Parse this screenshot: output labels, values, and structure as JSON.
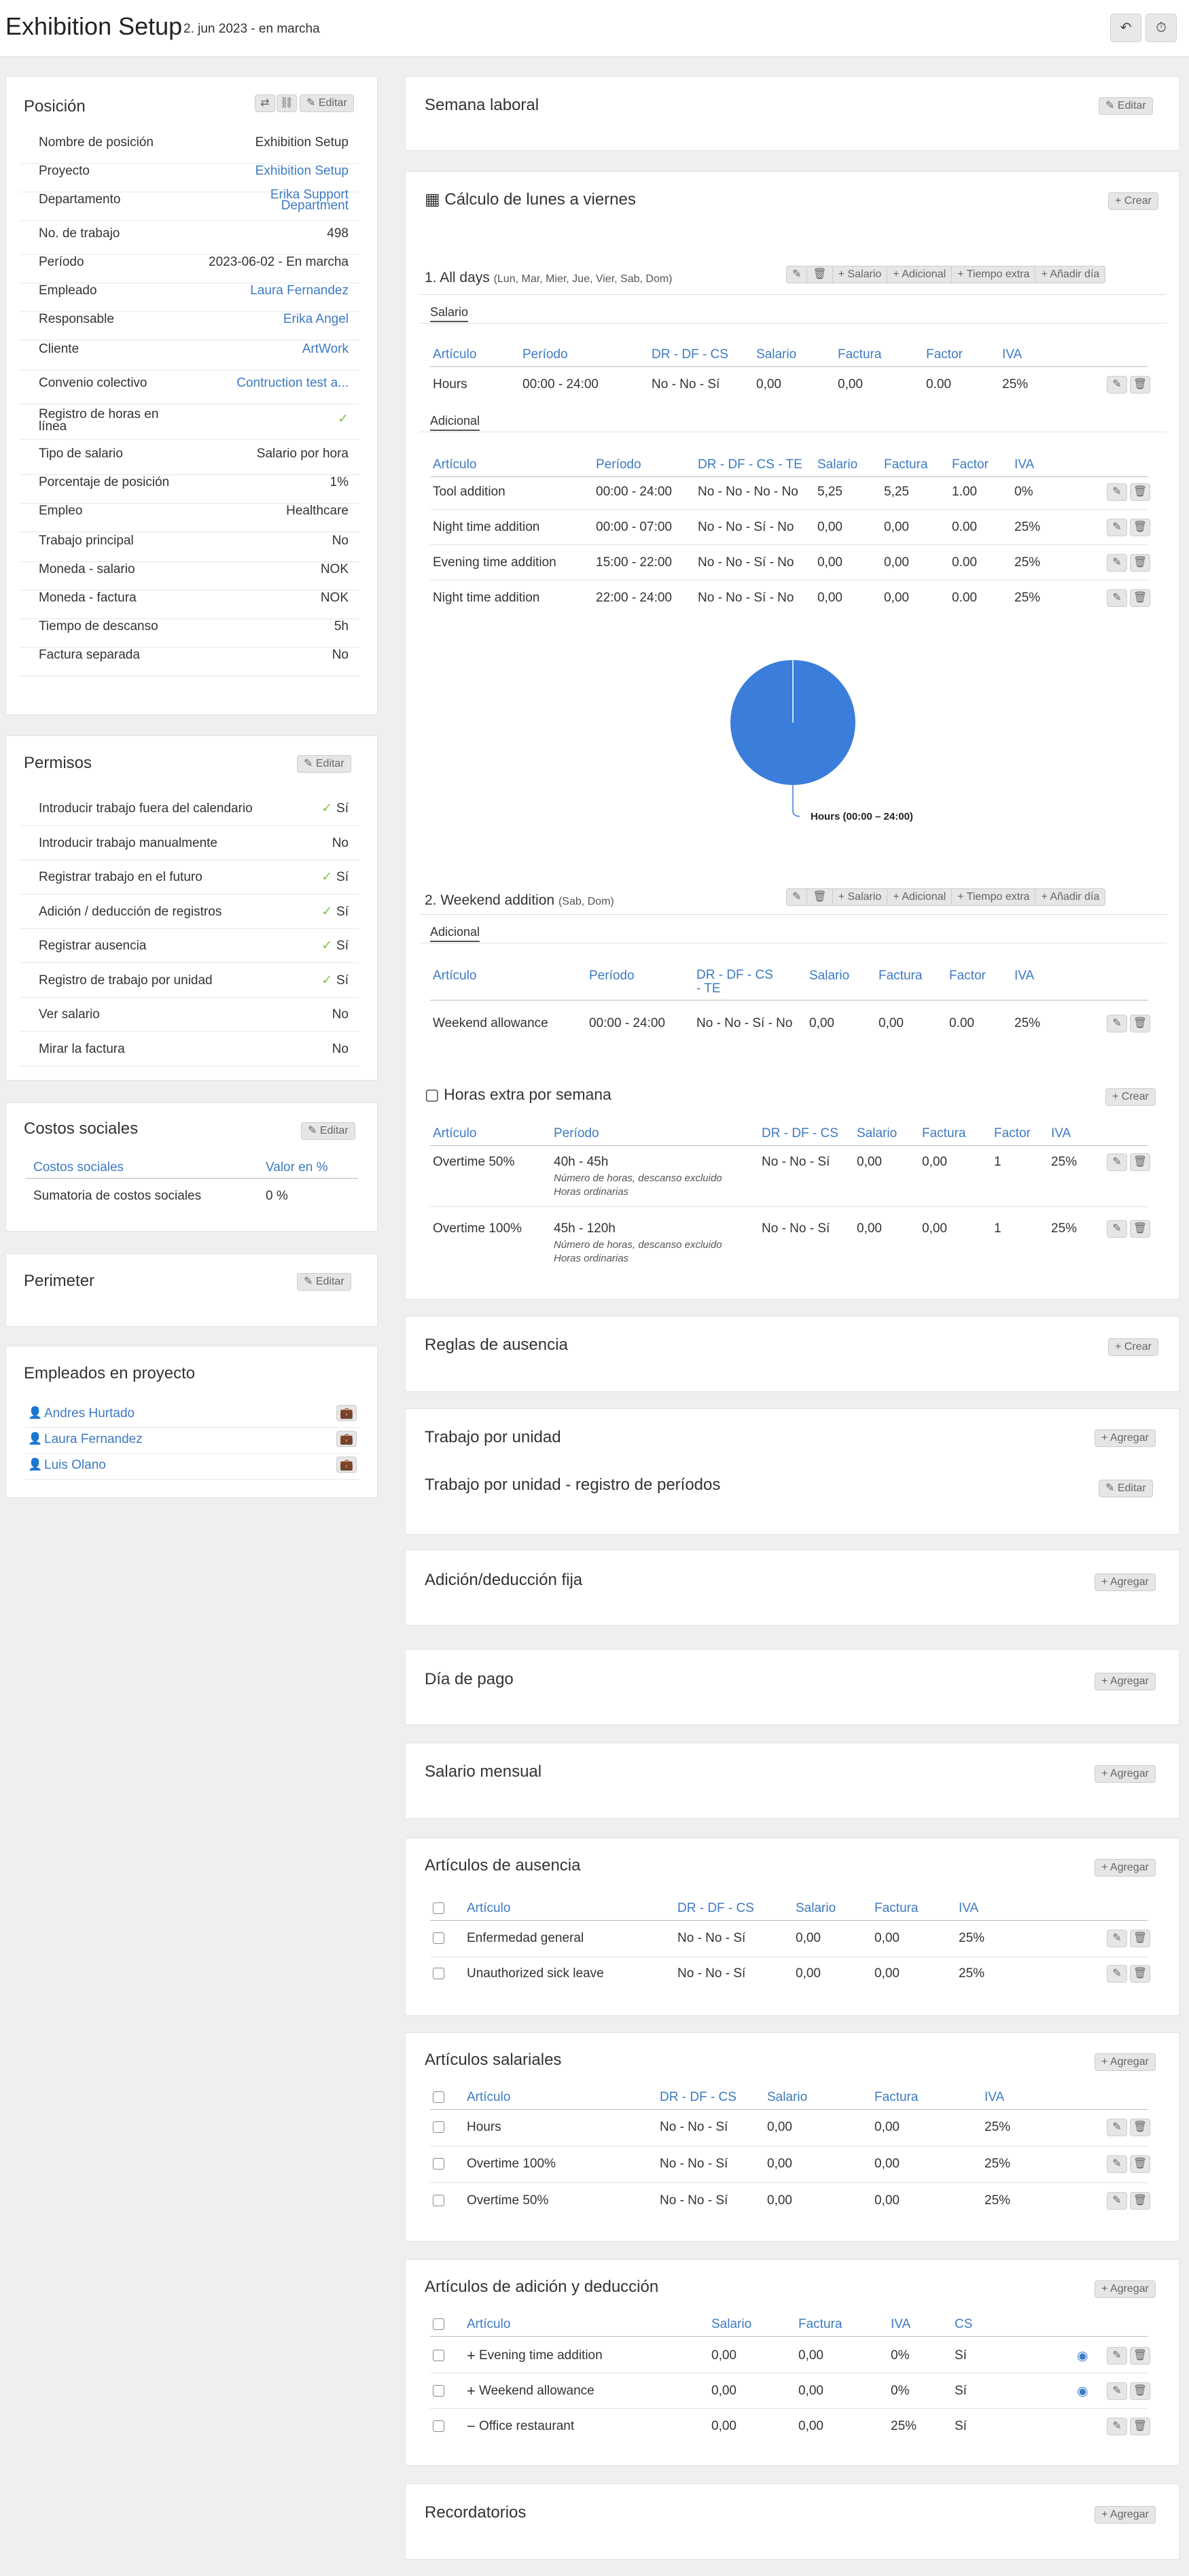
{
  "header": {
    "title": "Exhibition Setup",
    "subtitle": "2. jun 2023 - en marcha",
    "back_icon": "↶",
    "history_icon": "⏱"
  },
  "common": {
    "edit": "Editar",
    "create": "+ Crear",
    "add": "+ Agregar"
  },
  "posicion": {
    "title": "Posición",
    "rows": [
      {
        "label": "Nombre de posición",
        "value": "Exhibition Setup"
      },
      {
        "label": "Proyecto",
        "value": "Exhibition Setup"
      },
      {
        "label": "Departamento",
        "value": "Erika Support Department"
      },
      {
        "label": "No. de trabajo",
        "value": "498"
      },
      {
        "label": "Período",
        "value": "2023-06-02 - En marcha"
      },
      {
        "label": "Empleado",
        "value": "Laura Fernandez"
      },
      {
        "label": "Responsable",
        "value": "Erika Angel"
      },
      {
        "label": "Cliente",
        "value": "ArtWork"
      },
      {
        "label": "Convenio colectivo",
        "value": "Contruction test a..."
      },
      {
        "label": "Registro de horas en línea",
        "value": "✓"
      },
      {
        "label": "Tipo de salario",
        "value": "Salario por hora"
      },
      {
        "label": "Porcentaje de posición",
        "value": "1%"
      },
      {
        "label": "Empleo",
        "value": "Healthcare"
      },
      {
        "label": "Trabajo principal",
        "value": "No"
      },
      {
        "label": "Moneda - salario",
        "value": "NOK"
      },
      {
        "label": "Moneda - factura",
        "value": "NOK"
      },
      {
        "label": "Tiempo de descanso",
        "value": "5h"
      },
      {
        "label": "Factura separada",
        "value": "No"
      }
    ]
  },
  "permisos": {
    "title": "Permisos",
    "rows": [
      {
        "label": "Introducir trabajo fuera del calendario",
        "value": "Sí"
      },
      {
        "label": "Introducir trabajo manualmente",
        "value": "No"
      },
      {
        "label": "Registrar trabajo en el futuro",
        "value": "Sí"
      },
      {
        "label": "Adición / deducción de registros",
        "value": "Sí"
      },
      {
        "label": "Registrar ausencia",
        "value": "Sí"
      },
      {
        "label": "Registro de trabajo por unidad",
        "value": "Sí"
      },
      {
        "label": "Ver salario",
        "value": "No"
      },
      {
        "label": "Mirar la factura",
        "value": "No"
      }
    ]
  },
  "costos": {
    "title": "Costos sociales",
    "col1": "Costos sociales",
    "col2": "Valor en %",
    "row_label": "Sumatoria de costos sociales",
    "row_value": "0 %"
  },
  "perimeter": {
    "title": "Perimeter"
  },
  "empleados": {
    "title": "Empleados en proyecto",
    "items": [
      "Andres Hurtado",
      "Laura Fernandez",
      "Luis Olano"
    ]
  },
  "semana": {
    "title": "Semana laboral"
  },
  "calculo": {
    "title": "Cálculo de lunes a viernes"
  },
  "day1": {
    "title": "1. All days",
    "days": "(Lun, Mar, Mier, Jue, Vier, Sab, Dom)",
    "actions": [
      "+ Salario",
      "+ Adicional",
      "+ Tiempo extra",
      "+ Añadir día"
    ],
    "tab_salario": "Salario",
    "tab_adicional": "Adicional",
    "sal_headers": [
      "Artículo",
      "Período",
      "DR - DF - CS",
      "Salario",
      "Factura",
      "Factor",
      "IVA"
    ],
    "sal_row": [
      "Hours",
      "00:00 - 24:00",
      "No - No - Sí",
      "0,00",
      "0,00",
      "0.00",
      "25%"
    ],
    "add_headers": [
      "Artículo",
      "Período",
      "DR - DF - CS - TE",
      "Salario",
      "Factura",
      "Factor",
      "IVA"
    ],
    "add_rows": [
      [
        "Tool addition",
        "00:00 - 24:00",
        "No - No - No - No",
        "5,25",
        "5,25",
        "1.00",
        "0%"
      ],
      [
        "Night time addition",
        "00:00 - 07:00",
        "No - No - Sí - No",
        "0,00",
        "0,00",
        "0.00",
        "25%"
      ],
      [
        "Evening time addition",
        "15:00 - 22:00",
        "No - No - Sí - No",
        "0,00",
        "0,00",
        "0.00",
        "25%"
      ],
      [
        "Night time addition",
        "22:00 - 24:00",
        "No - No - Sí - No",
        "0,00",
        "0,00",
        "0.00",
        "25%"
      ]
    ]
  },
  "chart_data": {
    "type": "pie",
    "labels": [
      "Hours (00:00 – 24:00)"
    ],
    "values": [
      100
    ],
    "colors": [
      "#3a7ddb"
    ]
  },
  "day2": {
    "title": "2. Weekend addition",
    "days": "(Sab, Dom)",
    "tab_adicional": "Adicional",
    "headers": [
      "Artículo",
      "Período",
      "DR - DF - CS - TE",
      "Salario",
      "Factura",
      "Factor",
      "IVA"
    ],
    "row": [
      "Weekend allowance",
      "00:00 - 24:00",
      "No - No - Sí - No",
      "0,00",
      "0,00",
      "0.00",
      "25%"
    ]
  },
  "horas": {
    "title": "Horas extra por semana",
    "headers": [
      "Artículo",
      "Período",
      "DR - DF - CS",
      "Salario",
      "Factura",
      "Factor",
      "IVA"
    ],
    "rows": [
      {
        "cells": [
          "Overtime 50%",
          "40h - 45h",
          "No - No - Sí",
          "0,00",
          "0,00",
          "1",
          "25%"
        ],
        "note1": "Número de horas, descanso excluido",
        "note2": "Horas ordinarias"
      },
      {
        "cells": [
          "Overtime 100%",
          "45h - 120h",
          "No - No - Sí",
          "0,00",
          "0,00",
          "1",
          "25%"
        ],
        "note1": "Número de horas, descanso excluido",
        "note2": "Horas ordinarias"
      }
    ]
  },
  "reglas": {
    "title": "Reglas de ausencia"
  },
  "unidad": {
    "title": "Trabajo por unidad",
    "sub": "Trabajo por unidad - registro de períodos"
  },
  "adicion_fija": {
    "title": "Adición/deducción fija"
  },
  "dia_pago": {
    "title": "Día de pago"
  },
  "salario_mensual": {
    "title": "Salario mensual"
  },
  "ausencia": {
    "title": "Artículos de ausencia",
    "headers": [
      "Artículo",
      "DR - DF - CS",
      "Salario",
      "Factura",
      "IVA"
    ],
    "rows": [
      [
        "Enfermedad general",
        "No - No - Sí",
        "0,00",
        "0,00",
        "25%"
      ],
      [
        "Unauthorized sick leave",
        "No - No - Sí",
        "0,00",
        "0,00",
        "25%"
      ]
    ]
  },
  "salariales": {
    "title": "Artículos salariales",
    "headers": [
      "Artículo",
      "DR - DF - CS",
      "Salario",
      "Factura",
      "IVA"
    ],
    "rows": [
      [
        "Hours",
        "No - No - Sí",
        "0,00",
        "0,00",
        "25%"
      ],
      [
        "Overtime 100%",
        "No - No - Sí",
        "0,00",
        "0,00",
        "25%"
      ],
      [
        "Overtime 50%",
        "No - No - Sí",
        "0,00",
        "0,00",
        "25%"
      ]
    ]
  },
  "adicion": {
    "title": "Artículos de adición y deducción",
    "headers": [
      "Artículo",
      "Salario",
      "Factura",
      "IVA",
      "CS"
    ],
    "rows": [
      {
        "sign": "+",
        "cells": [
          "Evening time addition",
          "0,00",
          "0,00",
          "0%",
          "Sí"
        ],
        "eye": true
      },
      {
        "sign": "+",
        "cells": [
          "Weekend allowance",
          "0,00",
          "0,00",
          "0%",
          "Sí"
        ],
        "eye": true
      },
      {
        "sign": "−",
        "cells": [
          "Office restaurant",
          "0,00",
          "0,00",
          "25%",
          "Sí"
        ],
        "eye": false
      }
    ]
  },
  "recordatorios": {
    "title": "Recordatorios"
  }
}
